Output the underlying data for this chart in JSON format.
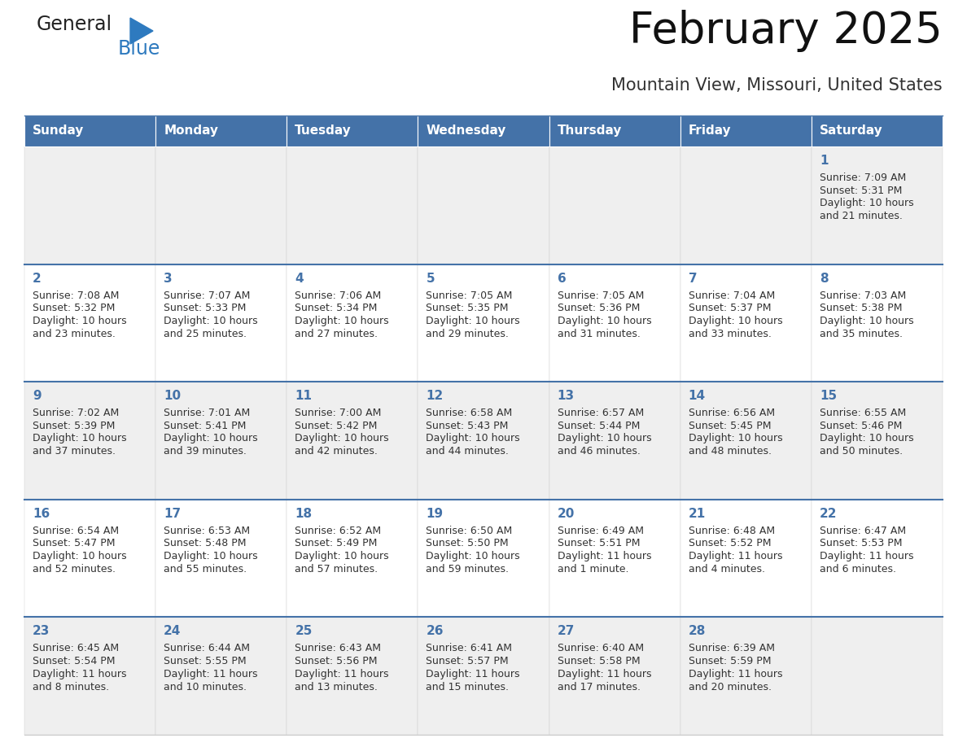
{
  "title": "February 2025",
  "subtitle": "Mountain View, Missouri, United States",
  "header_bg_color": "#4472a8",
  "header_text_color": "#ffffff",
  "cell_bg_even": "#efefef",
  "cell_bg_odd": "#ffffff",
  "day_number_color": "#4472a8",
  "text_color": "#333333",
  "separator_color": "#4472a8",
  "days_of_week": [
    "Sunday",
    "Monday",
    "Tuesday",
    "Wednesday",
    "Thursday",
    "Friday",
    "Saturday"
  ],
  "weeks": [
    [
      {
        "day": "",
        "sunrise": "",
        "sunset": "",
        "daylight": ""
      },
      {
        "day": "",
        "sunrise": "",
        "sunset": "",
        "daylight": ""
      },
      {
        "day": "",
        "sunrise": "",
        "sunset": "",
        "daylight": ""
      },
      {
        "day": "",
        "sunrise": "",
        "sunset": "",
        "daylight": ""
      },
      {
        "day": "",
        "sunrise": "",
        "sunset": "",
        "daylight": ""
      },
      {
        "day": "",
        "sunrise": "",
        "sunset": "",
        "daylight": ""
      },
      {
        "day": "1",
        "sunrise": "Sunrise: 7:09 AM",
        "sunset": "Sunset: 5:31 PM",
        "daylight": "Daylight: 10 hours\nand 21 minutes."
      }
    ],
    [
      {
        "day": "2",
        "sunrise": "Sunrise: 7:08 AM",
        "sunset": "Sunset: 5:32 PM",
        "daylight": "Daylight: 10 hours\nand 23 minutes."
      },
      {
        "day": "3",
        "sunrise": "Sunrise: 7:07 AM",
        "sunset": "Sunset: 5:33 PM",
        "daylight": "Daylight: 10 hours\nand 25 minutes."
      },
      {
        "day": "4",
        "sunrise": "Sunrise: 7:06 AM",
        "sunset": "Sunset: 5:34 PM",
        "daylight": "Daylight: 10 hours\nand 27 minutes."
      },
      {
        "day": "5",
        "sunrise": "Sunrise: 7:05 AM",
        "sunset": "Sunset: 5:35 PM",
        "daylight": "Daylight: 10 hours\nand 29 minutes."
      },
      {
        "day": "6",
        "sunrise": "Sunrise: 7:05 AM",
        "sunset": "Sunset: 5:36 PM",
        "daylight": "Daylight: 10 hours\nand 31 minutes."
      },
      {
        "day": "7",
        "sunrise": "Sunrise: 7:04 AM",
        "sunset": "Sunset: 5:37 PM",
        "daylight": "Daylight: 10 hours\nand 33 minutes."
      },
      {
        "day": "8",
        "sunrise": "Sunrise: 7:03 AM",
        "sunset": "Sunset: 5:38 PM",
        "daylight": "Daylight: 10 hours\nand 35 minutes."
      }
    ],
    [
      {
        "day": "9",
        "sunrise": "Sunrise: 7:02 AM",
        "sunset": "Sunset: 5:39 PM",
        "daylight": "Daylight: 10 hours\nand 37 minutes."
      },
      {
        "day": "10",
        "sunrise": "Sunrise: 7:01 AM",
        "sunset": "Sunset: 5:41 PM",
        "daylight": "Daylight: 10 hours\nand 39 minutes."
      },
      {
        "day": "11",
        "sunrise": "Sunrise: 7:00 AM",
        "sunset": "Sunset: 5:42 PM",
        "daylight": "Daylight: 10 hours\nand 42 minutes."
      },
      {
        "day": "12",
        "sunrise": "Sunrise: 6:58 AM",
        "sunset": "Sunset: 5:43 PM",
        "daylight": "Daylight: 10 hours\nand 44 minutes."
      },
      {
        "day": "13",
        "sunrise": "Sunrise: 6:57 AM",
        "sunset": "Sunset: 5:44 PM",
        "daylight": "Daylight: 10 hours\nand 46 minutes."
      },
      {
        "day": "14",
        "sunrise": "Sunrise: 6:56 AM",
        "sunset": "Sunset: 5:45 PM",
        "daylight": "Daylight: 10 hours\nand 48 minutes."
      },
      {
        "day": "15",
        "sunrise": "Sunrise: 6:55 AM",
        "sunset": "Sunset: 5:46 PM",
        "daylight": "Daylight: 10 hours\nand 50 minutes."
      }
    ],
    [
      {
        "day": "16",
        "sunrise": "Sunrise: 6:54 AM",
        "sunset": "Sunset: 5:47 PM",
        "daylight": "Daylight: 10 hours\nand 52 minutes."
      },
      {
        "day": "17",
        "sunrise": "Sunrise: 6:53 AM",
        "sunset": "Sunset: 5:48 PM",
        "daylight": "Daylight: 10 hours\nand 55 minutes."
      },
      {
        "day": "18",
        "sunrise": "Sunrise: 6:52 AM",
        "sunset": "Sunset: 5:49 PM",
        "daylight": "Daylight: 10 hours\nand 57 minutes."
      },
      {
        "day": "19",
        "sunrise": "Sunrise: 6:50 AM",
        "sunset": "Sunset: 5:50 PM",
        "daylight": "Daylight: 10 hours\nand 59 minutes."
      },
      {
        "day": "20",
        "sunrise": "Sunrise: 6:49 AM",
        "sunset": "Sunset: 5:51 PM",
        "daylight": "Daylight: 11 hours\nand 1 minute."
      },
      {
        "day": "21",
        "sunrise": "Sunrise: 6:48 AM",
        "sunset": "Sunset: 5:52 PM",
        "daylight": "Daylight: 11 hours\nand 4 minutes."
      },
      {
        "day": "22",
        "sunrise": "Sunrise: 6:47 AM",
        "sunset": "Sunset: 5:53 PM",
        "daylight": "Daylight: 11 hours\nand 6 minutes."
      }
    ],
    [
      {
        "day": "23",
        "sunrise": "Sunrise: 6:45 AM",
        "sunset": "Sunset: 5:54 PM",
        "daylight": "Daylight: 11 hours\nand 8 minutes."
      },
      {
        "day": "24",
        "sunrise": "Sunrise: 6:44 AM",
        "sunset": "Sunset: 5:55 PM",
        "daylight": "Daylight: 11 hours\nand 10 minutes."
      },
      {
        "day": "25",
        "sunrise": "Sunrise: 6:43 AM",
        "sunset": "Sunset: 5:56 PM",
        "daylight": "Daylight: 11 hours\nand 13 minutes."
      },
      {
        "day": "26",
        "sunrise": "Sunrise: 6:41 AM",
        "sunset": "Sunset: 5:57 PM",
        "daylight": "Daylight: 11 hours\nand 15 minutes."
      },
      {
        "day": "27",
        "sunrise": "Sunrise: 6:40 AM",
        "sunset": "Sunset: 5:58 PM",
        "daylight": "Daylight: 11 hours\nand 17 minutes."
      },
      {
        "day": "28",
        "sunrise": "Sunrise: 6:39 AM",
        "sunset": "Sunset: 5:59 PM",
        "daylight": "Daylight: 11 hours\nand 20 minutes."
      },
      {
        "day": "",
        "sunrise": "",
        "sunset": "",
        "daylight": ""
      }
    ]
  ],
  "logo_text1": "General",
  "logo_text2": "Blue",
  "logo_color1": "#222222",
  "logo_color2": "#2e7abf",
  "logo_triangle_color": "#2e7abf",
  "figwidth": 11.88,
  "figheight": 9.18,
  "dpi": 100
}
